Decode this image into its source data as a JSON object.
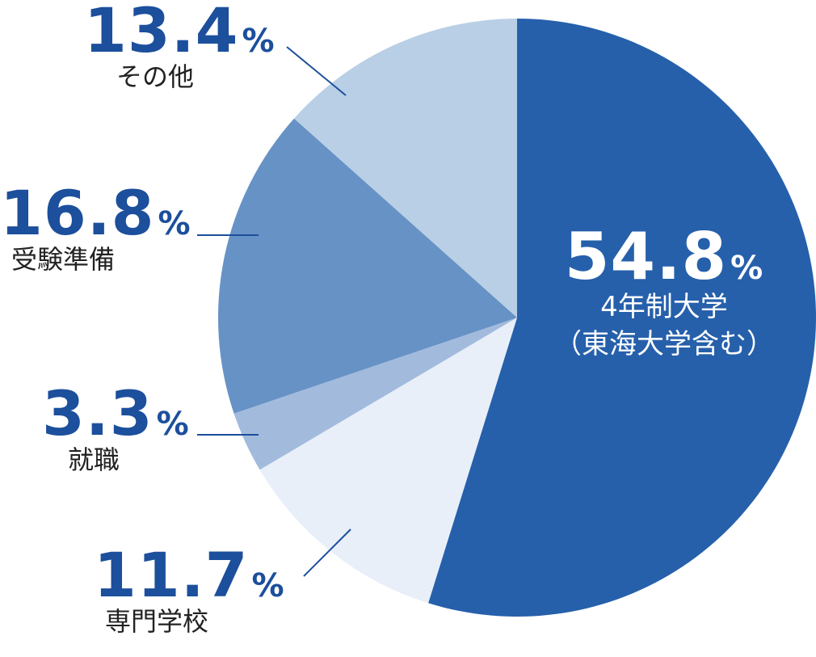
{
  "chart_data": {
    "type": "pie",
    "unit": "%",
    "colors": [
      "#2660ab",
      "#e8eff9",
      "#a2bbdd",
      "#6792c5",
      "#b9cfe6"
    ],
    "slices": [
      {
        "label_line1": "4年制大学",
        "label_line2": "（東海大学含む）",
        "value": 54.8,
        "value_text": "54.8"
      },
      {
        "label_line1": "専門学校",
        "label_line2": "",
        "value": 11.7,
        "value_text": "11.7"
      },
      {
        "label_line1": "就職",
        "label_line2": "",
        "value": 3.3,
        "value_text": "3.3"
      },
      {
        "label_line1": "受験準備",
        "label_line2": "",
        "value": 16.8,
        "value_text": "16.8"
      },
      {
        "label_line1": "その他",
        "label_line2": "",
        "value": 13.4,
        "value_text": "13.4"
      }
    ]
  }
}
